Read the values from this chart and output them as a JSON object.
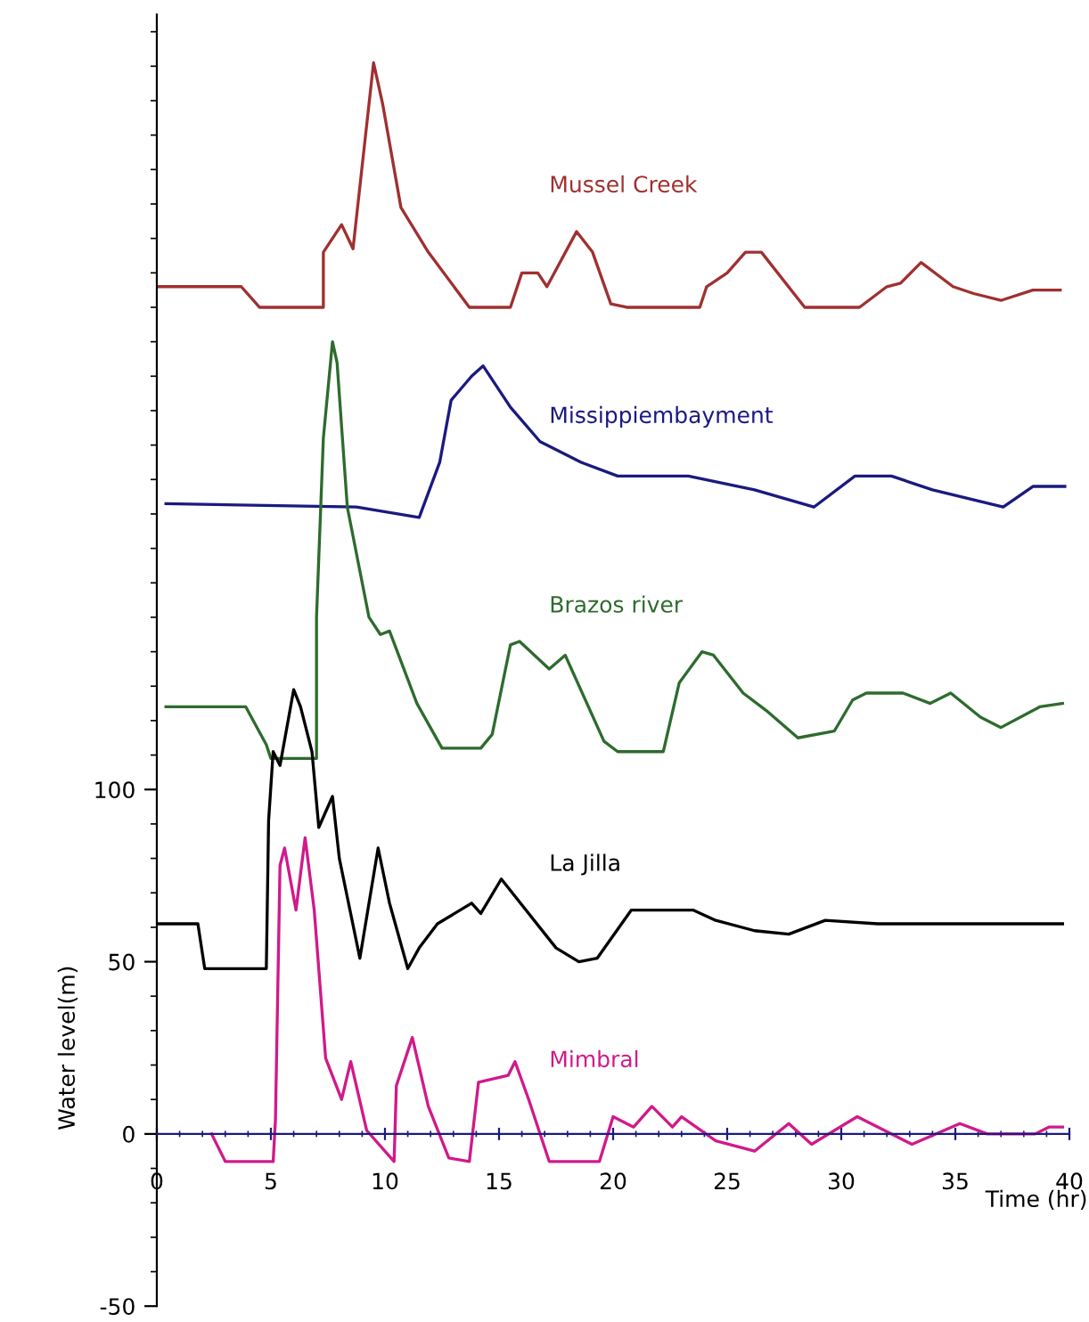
{
  "chart_data": {
    "type": "line",
    "xlabel": "Time (hr)",
    "ylabel": "Water level(m)",
    "xlim": [
      0,
      40
    ],
    "ylim": [
      -50,
      325
    ],
    "xticks": [
      0,
      5,
      10,
      15,
      20,
      25,
      30,
      35,
      40
    ],
    "yticks": [
      -50,
      0,
      50,
      100
    ],
    "grid": false,
    "legend": false,
    "marker": "none",
    "line_style": "solid",
    "series": [
      {
        "name": "Mussel Creek",
        "color": "#a03030",
        "x": [
          0,
          3.7,
          4.5,
          7.3,
          7.3,
          8.1,
          8.6,
          9.5,
          9.9,
          10.7,
          11.9,
          13.7,
          15.5,
          16.0,
          16.7,
          17.1,
          18.4,
          19.1,
          19.9,
          20.6,
          23.8,
          24.1,
          25.0,
          25.8,
          26.5,
          28.4,
          30.8,
          32.0,
          32.6,
          33.5,
          34.9,
          35.8,
          37.0,
          38.4,
          39.6
        ],
        "values": [
          246,
          246,
          240,
          240,
          256,
          264,
          257,
          311,
          299,
          269,
          256,
          240,
          240,
          250,
          250,
          246,
          262,
          256,
          241,
          240,
          240,
          246,
          250,
          256,
          256,
          240,
          240,
          246,
          247,
          253,
          246,
          244,
          242,
          245,
          245
        ]
      },
      {
        "name": "Missippiembayment",
        "color": "#1a1a80",
        "x": [
          0.4,
          8.75,
          11.5,
          12.4,
          12.9,
          13.8,
          14.3,
          15.5,
          16.8,
          18.6,
          20.2,
          23.3,
          26.2,
          28.8,
          30.6,
          32.2,
          34.0,
          37.1,
          38.4,
          39.8
        ],
        "values": [
          183,
          182,
          179,
          195,
          213,
          220,
          223,
          211,
          201,
          195,
          191,
          191,
          187,
          182,
          191,
          191,
          187,
          182,
          188,
          188
        ]
      },
      {
        "name": "Brazos river",
        "color": "#2e6b2e",
        "x": [
          0.4,
          3.9,
          4.8,
          5.0,
          7.0,
          7.0,
          7.3,
          7.7,
          7.9,
          8.35,
          9.3,
          9.8,
          10.2,
          11.4,
          12.5,
          14.2,
          14.7,
          15.5,
          15.9,
          17.2,
          17.9,
          19.6,
          20.2,
          22.2,
          22.9,
          23.9,
          24.4,
          25.7,
          26.7,
          28.1,
          29.7,
          30.5,
          31.1,
          32.7,
          33.9,
          34.8,
          36.1,
          37.0,
          38.7,
          39.7
        ],
        "values": [
          124,
          124,
          113,
          109,
          109,
          150,
          202,
          230,
          224,
          182,
          150,
          145,
          146,
          125,
          112,
          112,
          116,
          142,
          143,
          135,
          139,
          114,
          111,
          111,
          131,
          140,
          139,
          128,
          123,
          115,
          117,
          126,
          128,
          128,
          125,
          128,
          121,
          118,
          124,
          125
        ]
      },
      {
        "name": "La Jilla",
        "color": "#000000",
        "x": [
          0.1,
          1.8,
          2.1,
          4.8,
          4.9,
          5.1,
          5.4,
          6.0,
          6.3,
          6.8,
          7.1,
          7.7,
          8.0,
          8.9,
          9.7,
          10.2,
          11.0,
          11.5,
          12.3,
          13.8,
          14.2,
          15.1,
          17.5,
          18.5,
          19.3,
          20.8,
          23.5,
          24.5,
          26.2,
          27.7,
          29.3,
          31.6,
          39.7
        ],
        "values": [
          61,
          61,
          48,
          48,
          91,
          111,
          107,
          129,
          124,
          111,
          89,
          98,
          80,
          51,
          83,
          67,
          48,
          54,
          61,
          67,
          64,
          74,
          54,
          50,
          51,
          65,
          65,
          62,
          59,
          58,
          62,
          61,
          61
        ]
      },
      {
        "name": "Mimbral",
        "color": "#d01a8a",
        "x": [
          2.4,
          3.0,
          5.1,
          5.2,
          5.4,
          5.6,
          6.1,
          6.5,
          6.9,
          7.4,
          8.1,
          8.5,
          9.2,
          10.4,
          10.5,
          11.2,
          11.9,
          12.8,
          13.7,
          14.1,
          15.4,
          15.7,
          16.3,
          17.2,
          19.4,
          20.0,
          20.9,
          21.7,
          22.6,
          23.0,
          24.5,
          26.2,
          27.7,
          28.7,
          30.7,
          33.1,
          35.2,
          36.4,
          38.5,
          39.1,
          39.7
        ],
        "values": [
          0,
          -8,
          -8,
          4,
          78,
          83,
          65,
          86,
          65,
          22,
          10,
          21,
          1,
          -8,
          14,
          28,
          8,
          -7,
          -8,
          15,
          17,
          21,
          10,
          -8,
          -8,
          5,
          2,
          8,
          2,
          5,
          -2,
          -5,
          3,
          -3,
          5,
          -3,
          3,
          0,
          0,
          2,
          2
        ]
      }
    ]
  }
}
